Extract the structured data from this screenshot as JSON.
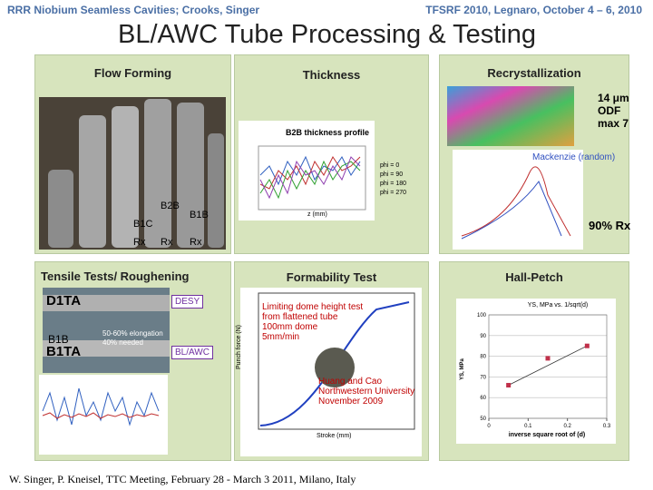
{
  "header": {
    "left": "RRR Niobium Seamless Cavities; Crooks, Singer",
    "right": "TFSRF 2010, Legnaro, October 4 – 6, 2010"
  },
  "title": "BL/AWC Tube Processing & Testing",
  "flow_forming": {
    "title": "Flow Forming",
    "labels": [
      "B1C",
      "B2B",
      "B1B",
      "Rx",
      "Rx",
      "Rx"
    ]
  },
  "thickness": {
    "title": "Thickness",
    "chart_title": "B2B thickness profile",
    "legend": [
      "phi = 0",
      "phi = 90",
      "phi = 180",
      "phi = 270"
    ],
    "xlabel": "z (mm)"
  },
  "recrystallization": {
    "title": "Recrystallization",
    "grain": "14 μm",
    "odf": "ODF",
    "max": "max 7",
    "mackenzie": "Mackenzie (random)",
    "rx": "90% Rx"
  },
  "tensile": {
    "title": "Tensile Tests/ Roughening",
    "d1ta": "D1TA",
    "desy": "DESY",
    "b1b": "B1B",
    "b1ta": "B1TA",
    "elong": "50-60% elongation",
    "needed": "40% needed",
    "blawc": "BL/AWC"
  },
  "formability": {
    "title": "Formability Test",
    "notes": [
      "Limiting dome height test",
      "from flattened tube",
      "100mm dome",
      "5mm/min"
    ],
    "credit": [
      "Huang and Cao",
      "Northwestern University",
      "November 2009"
    ],
    "xlabel": "Stroke (mm)",
    "ylabel": "Punch force (N)"
  },
  "hall_petch": {
    "title": "Hall-Petch",
    "chart_title": "YS, MPa vs. 1/sqrt(d)",
    "ylabel": "YS, MPa",
    "xlabel": "inverse square root of (d)",
    "xlim": [
      0,
      0.3
    ],
    "ylim": [
      50,
      100
    ],
    "xticks": [
      0,
      0.1,
      0.2,
      0.3
    ],
    "yticks": [
      50,
      60,
      70,
      80,
      90,
      100
    ],
    "x": [
      0.05,
      0.15,
      0.25
    ],
    "y": [
      66,
      79,
      85
    ]
  },
  "footer": "W. Singer, P. Kneisel, TTC Meeting, February 28 - March 3 2011, Milano, Italy"
}
